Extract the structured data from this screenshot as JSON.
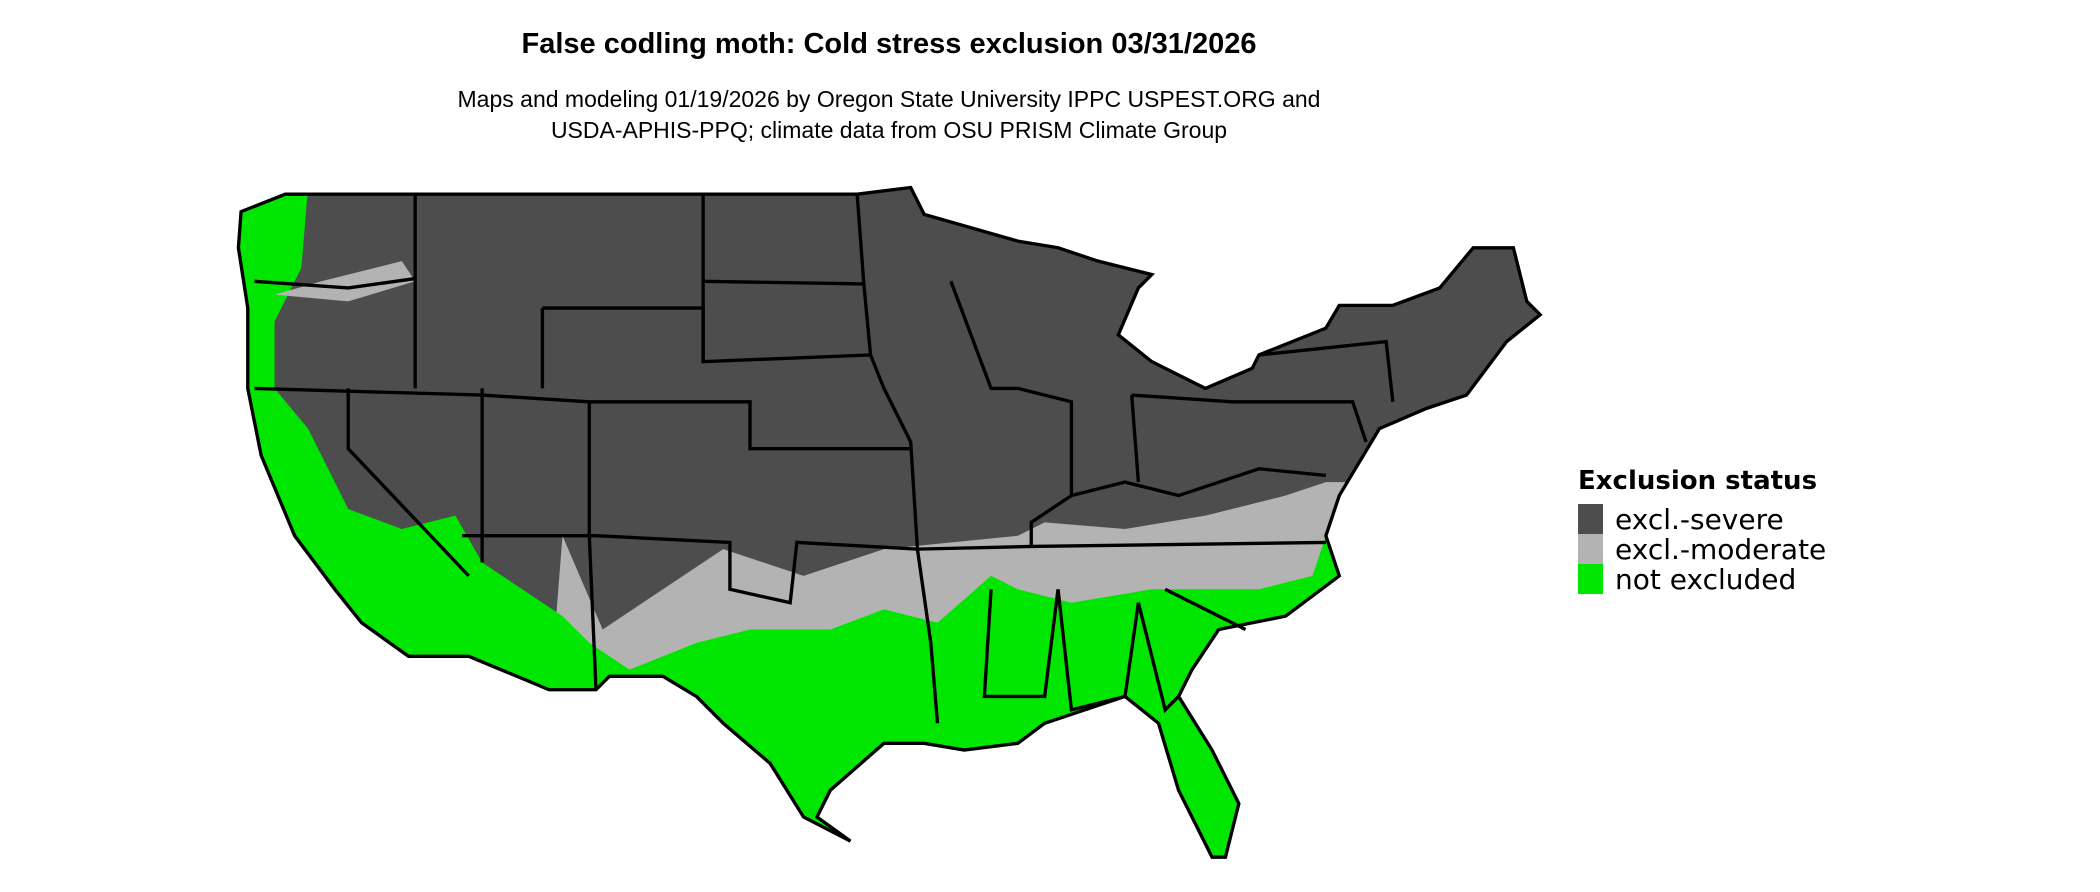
{
  "title": "False codling moth: Cold stress exclusion 03/31/2026",
  "subtitle_line1": "Maps and modeling 01/19/2026 by Oregon State University IPPC USPEST.ORG and",
  "subtitle_line2": "USDA-APHIS-PPQ; climate data from OSU PRISM Climate Group",
  "legend": {
    "title": "Exclusion status",
    "items": [
      {
        "label": "excl.-severe",
        "color": "#4d4d4d"
      },
      {
        "label": "excl.-moderate",
        "color": "#b3b3b3"
      },
      {
        "label": "not excluded",
        "color": "#00e600"
      }
    ]
  },
  "map": {
    "region": "contiguous United States",
    "border_color": "#000000"
  }
}
